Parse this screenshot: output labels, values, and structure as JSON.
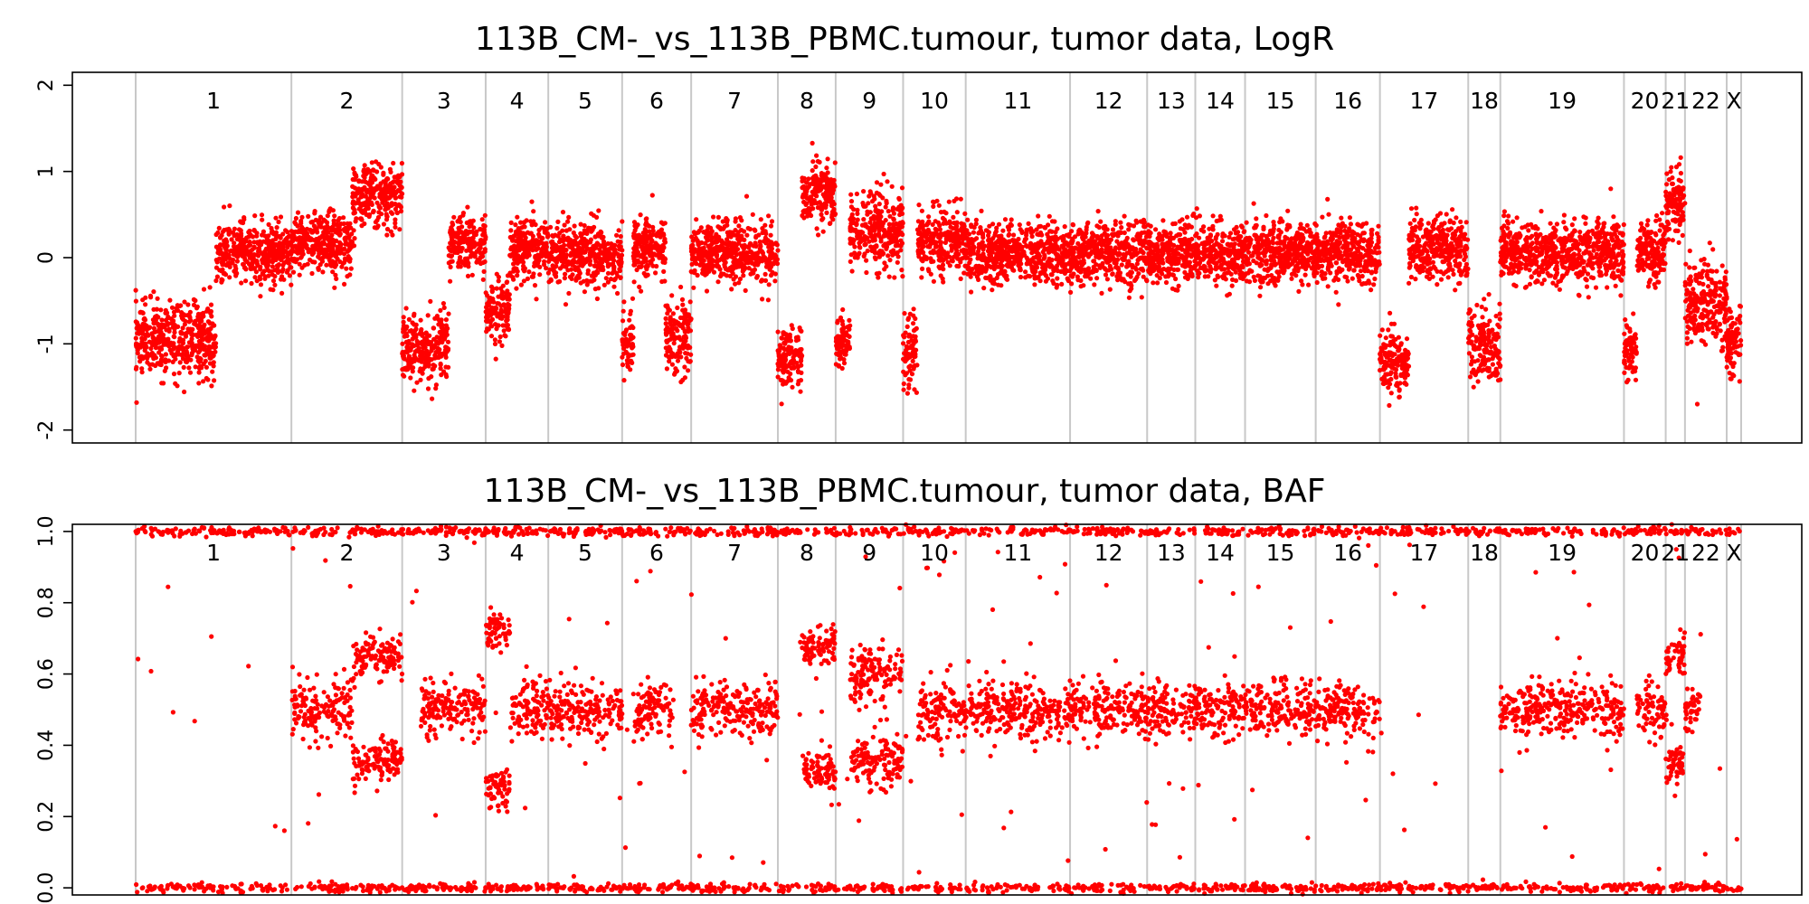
{
  "chart_data": [
    {
      "type": "scatter",
      "title": "113B_CM-_vs_113B_PBMC.tumour, tumor data, LogR",
      "xlabel": "",
      "ylabel": "",
      "ylim": [
        -2.15,
        2.15
      ],
      "yticks": [
        2,
        1,
        0,
        -1,
        -2
      ],
      "grid": false,
      "legend": "none",
      "point_color": "#ff0000",
      "chromosome_boundary_color": "#c8c8c8",
      "chromosome_labels": [
        "1",
        "2",
        "3",
        "4",
        "5",
        "6",
        "7",
        "8",
        "9",
        "10",
        "11",
        "12",
        "13",
        "14",
        "15",
        "16",
        "17",
        "18",
        "19",
        "20",
        "21",
        "22",
        "X"
      ],
      "chromosome_boundaries": [
        0,
        0.097,
        0.166,
        0.218,
        0.257,
        0.303,
        0.346,
        0.4,
        0.436,
        0.478,
        0.517,
        0.582,
        0.63,
        0.66,
        0.691,
        0.735,
        0.775,
        0.83,
        0.85,
        0.927,
        0.953,
        0.965,
        0.991,
        1.0
      ],
      "segments": [
        {
          "chrom": "1",
          "x": [
            0.0,
            0.05
          ],
          "y": -0.95,
          "spread": 0.42
        },
        {
          "chrom": "1",
          "x": [
            0.05,
            0.097
          ],
          "y": 0.05,
          "spread": 0.35
        },
        {
          "chrom": "2",
          "x": [
            0.097,
            0.135
          ],
          "y": 0.15,
          "spread": 0.35
        },
        {
          "chrom": "2",
          "x": [
            0.135,
            0.166
          ],
          "y": 0.72,
          "spread": 0.35
        },
        {
          "chrom": "3",
          "x": [
            0.166,
            0.195
          ],
          "y": -1.05,
          "spread": 0.4
        },
        {
          "chrom": "3",
          "x": [
            0.195,
            0.218
          ],
          "y": 0.15,
          "spread": 0.35
        },
        {
          "chrom": "4",
          "x": [
            0.218,
            0.233
          ],
          "y": -0.65,
          "spread": 0.35
        },
        {
          "chrom": "4",
          "x": [
            0.233,
            0.257
          ],
          "y": 0.1,
          "spread": 0.35
        },
        {
          "chrom": "5",
          "x": [
            0.257,
            0.303
          ],
          "y": 0.05,
          "spread": 0.35
        },
        {
          "chrom": "6",
          "x": [
            0.303,
            0.31
          ],
          "y": -1.0,
          "spread": 0.4
        },
        {
          "chrom": "6",
          "x": [
            0.31,
            0.33
          ],
          "y": 0.1,
          "spread": 0.35
        },
        {
          "chrom": "6",
          "x": [
            0.33,
            0.346
          ],
          "y": -0.9,
          "spread": 0.45
        },
        {
          "chrom": "7",
          "x": [
            0.346,
            0.4
          ],
          "y": 0.05,
          "spread": 0.35
        },
        {
          "chrom": "8",
          "x": [
            0.4,
            0.415
          ],
          "y": -1.15,
          "spread": 0.35
        },
        {
          "chrom": "8",
          "x": [
            0.415,
            0.436
          ],
          "y": 0.75,
          "spread": 0.35
        },
        {
          "chrom": "9",
          "x": [
            0.436,
            0.445
          ],
          "y": -1.0,
          "spread": 0.35
        },
        {
          "chrom": "9",
          "x": [
            0.445,
            0.478
          ],
          "y": 0.3,
          "spread": 0.45
        },
        {
          "chrom": "10",
          "x": [
            0.478,
            0.487
          ],
          "y": -1.1,
          "spread": 0.45
        },
        {
          "chrom": "10",
          "x": [
            0.487,
            0.517
          ],
          "y": 0.2,
          "spread": 0.35
        },
        {
          "chrom": "11",
          "x": [
            0.517,
            0.582
          ],
          "y": 0.05,
          "spread": 0.35
        },
        {
          "chrom": "12",
          "x": [
            0.582,
            0.63
          ],
          "y": 0.05,
          "spread": 0.35
        },
        {
          "chrom": "13",
          "x": [
            0.63,
            0.66
          ],
          "y": 0.05,
          "spread": 0.35
        },
        {
          "chrom": "14",
          "x": [
            0.66,
            0.691
          ],
          "y": 0.05,
          "spread": 0.35
        },
        {
          "chrom": "15",
          "x": [
            0.691,
            0.735
          ],
          "y": 0.05,
          "spread": 0.35
        },
        {
          "chrom": "16",
          "x": [
            0.735,
            0.775
          ],
          "y": 0.05,
          "spread": 0.35
        },
        {
          "chrom": "17",
          "x": [
            0.775,
            0.793
          ],
          "y": -1.2,
          "spread": 0.35
        },
        {
          "chrom": "17",
          "x": [
            0.793,
            0.83
          ],
          "y": 0.1,
          "spread": 0.35
        },
        {
          "chrom": "18",
          "x": [
            0.83,
            0.85
          ],
          "y": -1.0,
          "spread": 0.4
        },
        {
          "chrom": "19",
          "x": [
            0.85,
            0.927
          ],
          "y": 0.05,
          "spread": 0.35
        },
        {
          "chrom": "20",
          "x": [
            0.927,
            0.935
          ],
          "y": -1.1,
          "spread": 0.35
        },
        {
          "chrom": "20",
          "x": [
            0.935,
            0.953
          ],
          "y": 0.1,
          "spread": 0.35
        },
        {
          "chrom": "21",
          "x": [
            0.953,
            0.965
          ],
          "y": 0.65,
          "spread": 0.35
        },
        {
          "chrom": "22",
          "x": [
            0.965,
            0.991
          ],
          "y": -0.5,
          "spread": 0.5
        },
        {
          "chrom": "X",
          "x": [
            0.991,
            1.0
          ],
          "y": -1.0,
          "spread": 0.4
        }
      ]
    },
    {
      "type": "scatter",
      "title": "113B_CM-_vs_113B_PBMC.tumour, tumor data, BAF",
      "xlabel": "",
      "ylabel": "",
      "ylim": [
        -0.02,
        1.02
      ],
      "yticks": [
        0.0,
        0.2,
        0.4,
        0.6,
        0.8,
        1.0
      ],
      "ytick_labels": [
        "0.0",
        "0.2",
        "0.4",
        "0.6",
        "0.8",
        "1.0"
      ],
      "grid": false,
      "legend": "none",
      "point_color": "#ff0000",
      "homozygous_bands": [
        0.0,
        1.0
      ],
      "heterozygous_segments": [
        {
          "chrom": "2",
          "x": [
            0.097,
            0.135
          ],
          "bands": [
            0.5
          ],
          "spread": 0.08
        },
        {
          "chrom": "2",
          "x": [
            0.135,
            0.166
          ],
          "bands": [
            0.35,
            0.65
          ],
          "spread": 0.05
        },
        {
          "chrom": "3",
          "x": [
            0.177,
            0.218
          ],
          "bands": [
            0.5
          ],
          "spread": 0.07
        },
        {
          "chrom": "4",
          "x": [
            0.218,
            0.233
          ],
          "bands": [
            0.28,
            0.72
          ],
          "spread": 0.05
        },
        {
          "chrom": "4",
          "x": [
            0.233,
            0.257
          ],
          "bands": [
            0.5
          ],
          "spread": 0.07
        },
        {
          "chrom": "5",
          "x": [
            0.257,
            0.303
          ],
          "bands": [
            0.5
          ],
          "spread": 0.07
        },
        {
          "chrom": "6",
          "x": [
            0.31,
            0.335
          ],
          "bands": [
            0.5
          ],
          "spread": 0.07
        },
        {
          "chrom": "7",
          "x": [
            0.346,
            0.4
          ],
          "bands": [
            0.5
          ],
          "spread": 0.07
        },
        {
          "chrom": "8",
          "x": [
            0.415,
            0.436
          ],
          "bands": [
            0.33,
            0.67
          ],
          "spread": 0.05
        },
        {
          "chrom": "9",
          "x": [
            0.445,
            0.478
          ],
          "bands": [
            0.35,
            0.6
          ],
          "spread": 0.07
        },
        {
          "chrom": "10",
          "x": [
            0.487,
            0.517
          ],
          "bands": [
            0.5
          ],
          "spread": 0.08
        },
        {
          "chrom": "11",
          "x": [
            0.517,
            0.582
          ],
          "bands": [
            0.5
          ],
          "spread": 0.07
        },
        {
          "chrom": "12",
          "x": [
            0.582,
            0.63
          ],
          "bands": [
            0.5
          ],
          "spread": 0.07
        },
        {
          "chrom": "13",
          "x": [
            0.63,
            0.66
          ],
          "bands": [
            0.5
          ],
          "spread": 0.07
        },
        {
          "chrom": "14",
          "x": [
            0.66,
            0.691
          ],
          "bands": [
            0.5
          ],
          "spread": 0.07
        },
        {
          "chrom": "15",
          "x": [
            0.691,
            0.735
          ],
          "bands": [
            0.5
          ],
          "spread": 0.07
        },
        {
          "chrom": "16",
          "x": [
            0.735,
            0.775
          ],
          "bands": [
            0.5
          ],
          "spread": 0.07
        },
        {
          "chrom": "19",
          "x": [
            0.85,
            0.927
          ],
          "bands": [
            0.5
          ],
          "spread": 0.07
        },
        {
          "chrom": "20",
          "x": [
            0.935,
            0.953
          ],
          "bands": [
            0.5
          ],
          "spread": 0.07
        },
        {
          "chrom": "21",
          "x": [
            0.953,
            0.965
          ],
          "bands": [
            0.35,
            0.65
          ],
          "spread": 0.06
        },
        {
          "chrom": "22",
          "x": [
            0.965,
            0.975
          ],
          "bands": [
            0.5
          ],
          "spread": 0.07
        }
      ]
    }
  ]
}
